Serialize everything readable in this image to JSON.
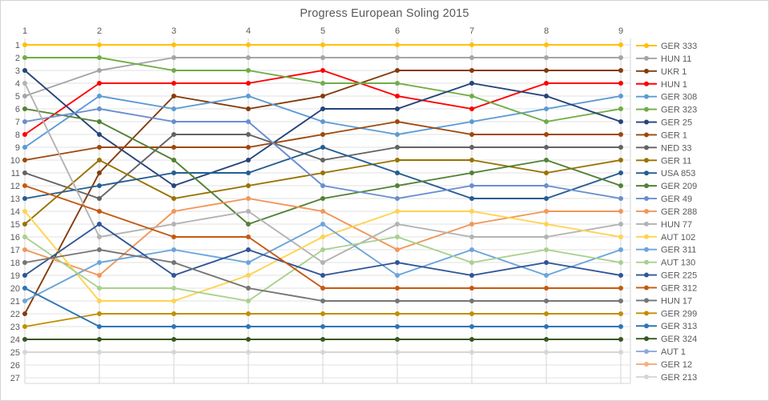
{
  "title": "Progress European Soling 2015",
  "chart_data": {
    "type": "line",
    "subtype": "bump-ranking-chart",
    "title": "Progress European Soling 2015",
    "x_label": "",
    "y_label": "",
    "x_axis": {
      "position": "top",
      "ticks": [
        "1",
        "2",
        "3",
        "4",
        "5",
        "6",
        "7",
        "8",
        "9"
      ]
    },
    "y_axis": {
      "inverted": true,
      "min": 1,
      "max": 27,
      "ticks": [
        "1",
        "2",
        "3",
        "4",
        "5",
        "6",
        "7",
        "8",
        "9",
        "10",
        "11",
        "12",
        "13",
        "14",
        "15",
        "16",
        "17",
        "18",
        "19",
        "20",
        "21",
        "22",
        "23",
        "24",
        "25",
        "26",
        "27"
      ]
    },
    "grid": true,
    "legend_position": "right",
    "note": "positions per race; null values = entry shown in legend only (no plotted data)",
    "x": [
      1,
      2,
      3,
      4,
      5,
      6,
      7,
      8,
      9
    ],
    "series": [
      {
        "name": "GER 333",
        "color": "#FFC000",
        "values": [
          1,
          1,
          1,
          1,
          1,
          1,
          1,
          1,
          1
        ]
      },
      {
        "name": "HUN 11",
        "color": "#A5A5A5",
        "values": [
          5,
          3,
          2,
          2,
          2,
          2,
          2,
          2,
          2
        ]
      },
      {
        "name": "UKR 1",
        "color": "#843C0C",
        "values": [
          22,
          11,
          5,
          6,
          5,
          3,
          3,
          3,
          3
        ]
      },
      {
        "name": "HUN 1",
        "color": "#FF0000",
        "values": [
          8,
          4,
          4,
          4,
          3,
          5,
          6,
          4,
          4
        ]
      },
      {
        "name": "GER 308",
        "color": "#5B9BD5",
        "values": [
          9,
          5,
          6,
          5,
          7,
          8,
          7,
          6,
          5
        ]
      },
      {
        "name": "GER 323",
        "color": "#70AD47",
        "values": [
          2,
          2,
          3,
          3,
          4,
          4,
          5,
          7,
          6
        ]
      },
      {
        "name": "GER 25",
        "color": "#264478",
        "values": [
          3,
          8,
          12,
          10,
          6,
          6,
          4,
          5,
          7
        ]
      },
      {
        "name": "GER 1",
        "color": "#9E480E",
        "values": [
          10,
          9,
          9,
          9,
          8,
          7,
          8,
          8,
          8
        ]
      },
      {
        "name": "NED 33",
        "color": "#636363",
        "values": [
          11,
          13,
          8,
          8,
          10,
          9,
          9,
          9,
          9
        ]
      },
      {
        "name": "GER 11",
        "color": "#997300",
        "values": [
          15,
          10,
          13,
          12,
          11,
          10,
          10,
          11,
          10
        ]
      },
      {
        "name": "USA 853",
        "color": "#255E91",
        "values": [
          13,
          12,
          11,
          11,
          9,
          11,
          13,
          13,
          11
        ]
      },
      {
        "name": "GER 209",
        "color": "#538135",
        "values": [
          6,
          7,
          10,
          15,
          13,
          12,
          11,
          10,
          12
        ]
      },
      {
        "name": "GER 49",
        "color": "#698ED0",
        "values": [
          7,
          6,
          7,
          7,
          12,
          13,
          12,
          12,
          13
        ]
      },
      {
        "name": "GER 288",
        "color": "#F1975A",
        "values": [
          17,
          19,
          14,
          13,
          14,
          17,
          15,
          14,
          14
        ]
      },
      {
        "name": "HUN 77",
        "color": "#B3B3B3",
        "values": [
          4,
          16,
          15,
          14,
          18,
          15,
          16,
          16,
          15
        ]
      },
      {
        "name": "AUT 102",
        "color": "#FFD34F",
        "values": [
          14,
          21,
          21,
          19,
          16,
          14,
          14,
          15,
          16
        ]
      },
      {
        "name": "GER 311",
        "color": "#6BA5DB",
        "values": [
          21,
          18,
          17,
          18,
          15,
          19,
          17,
          19,
          17
        ]
      },
      {
        "name": "AUT 130",
        "color": "#A9D18E",
        "values": [
          16,
          20,
          20,
          21,
          17,
          16,
          18,
          17,
          18
        ]
      },
      {
        "name": "GER 225",
        "color": "#2F5597",
        "values": [
          19,
          15,
          19,
          17,
          19,
          18,
          19,
          18,
          19
        ]
      },
      {
        "name": "GER 312",
        "color": "#C55A11",
        "values": [
          12,
          14,
          16,
          16,
          20,
          20,
          20,
          20,
          20
        ]
      },
      {
        "name": "HUN 17",
        "color": "#757575",
        "values": [
          18,
          17,
          18,
          20,
          21,
          21,
          21,
          21,
          21
        ]
      },
      {
        "name": "GER 299",
        "color": "#BF9000",
        "values": [
          23,
          22,
          22,
          22,
          22,
          22,
          22,
          22,
          22
        ]
      },
      {
        "name": "GER 313",
        "color": "#2E75B6",
        "values": [
          20,
          23,
          23,
          23,
          23,
          23,
          23,
          23,
          23
        ]
      },
      {
        "name": "GER 324",
        "color": "#385723",
        "values": [
          24,
          24,
          24,
          24,
          24,
          24,
          24,
          24,
          24
        ]
      },
      {
        "name": "AUT 1",
        "color": "#8FAADC",
        "values": null
      },
      {
        "name": "GER 12",
        "color": "#F4B183",
        "values": null
      },
      {
        "name": "GER 213",
        "color": "#D6D6D6",
        "values": [
          25,
          25,
          25,
          25,
          25,
          25,
          25,
          25,
          25
        ]
      }
    ]
  },
  "style": {
    "grid_color": "#E2E2E2",
    "axis_color": "#D6D6D6",
    "tick_color": "#595959",
    "title_color": "#595959",
    "legend_text_color": "#595959",
    "background": "#FFFFFF"
  }
}
